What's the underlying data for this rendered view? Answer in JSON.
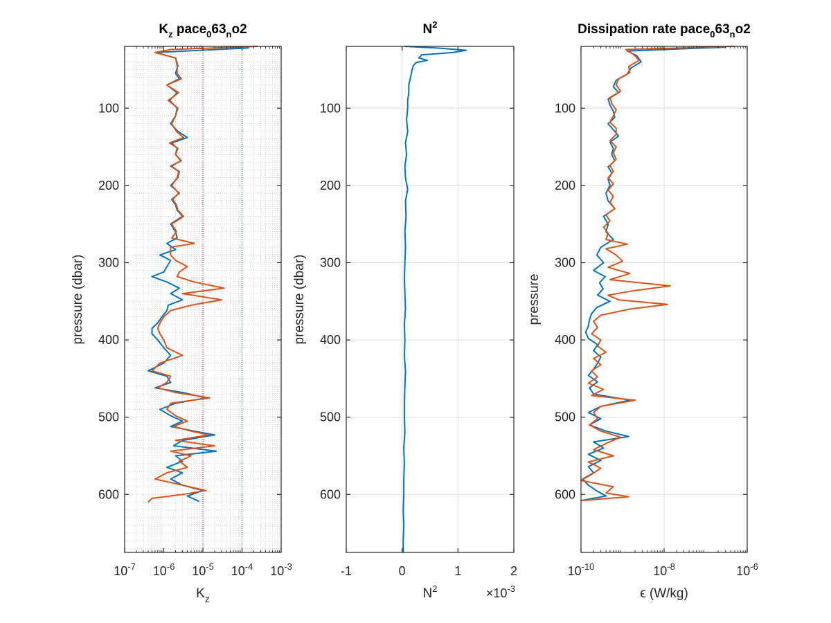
{
  "colors": {
    "series1": "#0072BD",
    "series2": "#D95319",
    "refline": "#C00000",
    "grid": "#DDDDDD",
    "axis": "#262626"
  },
  "chart_data": [
    {
      "type": "line",
      "title_main": "K",
      "title_sub": "z",
      "title_tail": " pace",
      "title_sub2": "0",
      "title_mid": "63",
      "title_sub3": "n",
      "title_end": "o2",
      "xlabel_main": "K",
      "xlabel_sub": "z",
      "ylabel": "pressure (dbar)",
      "xscale": "log",
      "xlim": [
        1e-07,
        0.001
      ],
      "ylim": [
        20,
        675
      ],
      "y_reversed": true,
      "xticks": [
        1e-07,
        1e-06,
        1e-05,
        0.0001,
        0.001
      ],
      "xtick_base": "10",
      "xtick_exponents": [
        "-7",
        "-6",
        "-5",
        "-4",
        "-3"
      ],
      "yticks": [
        100,
        200,
        300,
        400,
        500,
        600
      ],
      "ytick_labels": [
        "100",
        "200",
        "300",
        "400",
        "500",
        "600"
      ],
      "grid": "log-minor dotted",
      "reference_lines": [
        1e-05,
        0.0001
      ],
      "series": [
        {
          "color": "#0072BD",
          "y": [
            22,
            28,
            35,
            45,
            55,
            62,
            70,
            80,
            90,
            100,
            110,
            120,
            130,
            138,
            145,
            152,
            160,
            168,
            175,
            182,
            190,
            200,
            210,
            218,
            225,
            232,
            240,
            250,
            260,
            268,
            275,
            283,
            290,
            297,
            305,
            312,
            318,
            325,
            333,
            340,
            348,
            355,
            362,
            370,
            378,
            385,
            392,
            400,
            410,
            420,
            430,
            440,
            447,
            455,
            462,
            468,
            475,
            482,
            490,
            498,
            505,
            512,
            518,
            523,
            530,
            537,
            544,
            550,
            557,
            565,
            572,
            580,
            588,
            595,
            602,
            609
          ],
          "x": [
            0.00015,
            6e-07,
            2e-06,
            2.3e-06,
            2e-06,
            2.5e-06,
            1.2e-06,
            2.2e-06,
            1.4e-06,
            2.2e-06,
            2e-06,
            1.5e-06,
            2.3e-06,
            4e-06,
            1.6e-06,
            2.2e-06,
            2e-06,
            2.8e-06,
            1.5e-06,
            2.5e-06,
            2.3e-06,
            1.5e-06,
            2.5e-06,
            1.6e-06,
            2e-06,
            2.2e-06,
            3e-06,
            1.5e-06,
            2e-06,
            2.2e-06,
            1.2e-06,
            2e-06,
            8e-07,
            1.5e-06,
            1.2e-06,
            1e-06,
            5e-07,
            1.2e-06,
            2.5e-06,
            1.5e-06,
            3e-06,
            1.3e-06,
            1.2e-06,
            9e-07,
            7e-07,
            5e-07,
            5e-07,
            7e-07,
            1e-06,
            1.5e-06,
            1e-06,
            4e-07,
            1.2e-06,
            1.5e-06,
            6e-07,
            3e-06,
            1.2e-05,
            2e-06,
            8e-07,
            1.5e-06,
            3e-06,
            1.5e-06,
            6e-06,
            2e-05,
            3e-06,
            1.8e-06,
            2.2e-05,
            2e-06,
            3e-06,
            1.2e-06,
            3e-06,
            1.5e-06,
            3e-06,
            1e-05,
            4e-06,
            8e-06
          ]
        },
        {
          "color": "#D95319",
          "y": [
            20,
            24,
            28,
            35,
            45,
            55,
            62,
            70,
            80,
            90,
            100,
            110,
            120,
            130,
            138,
            145,
            152,
            160,
            168,
            175,
            182,
            190,
            200,
            210,
            218,
            225,
            232,
            240,
            250,
            260,
            268,
            275,
            280,
            290,
            297,
            305,
            312,
            318,
            325,
            333,
            340,
            348,
            355,
            362,
            370,
            378,
            385,
            392,
            400,
            410,
            420,
            430,
            440,
            447,
            455,
            462,
            468,
            475,
            482,
            490,
            498,
            505,
            512,
            518,
            523,
            530,
            537,
            544,
            550,
            557,
            565,
            572,
            580,
            588,
            595,
            600,
            605,
            610
          ],
          "x": [
            0.00025,
            1.5e-06,
            6e-07,
            2e-06,
            2.2e-06,
            2.2e-06,
            2.8e-06,
            1.2e-06,
            2.4e-06,
            1.3e-06,
            2.3e-06,
            2e-06,
            1.6e-06,
            2.1e-06,
            3.2e-06,
            1.4e-06,
            2.3e-06,
            2e-06,
            2.7e-06,
            1.6e-06,
            2.4e-06,
            2.2e-06,
            1.6e-06,
            2.4e-06,
            1.7e-06,
            2.1e-06,
            2.3e-06,
            3.2e-06,
            1.6e-06,
            2.1e-06,
            1.6e-06,
            6e-06,
            1.5e-06,
            1.5e-06,
            2e-06,
            4e-06,
            2.5e-06,
            2.2e-06,
            6e-06,
            3.5e-05,
            3e-06,
            3e-05,
            5e-06,
            1.5e-06,
            1e-06,
            8e-07,
            7e-07,
            8e-07,
            1e-06,
            1.2e-06,
            3e-06,
            8e-07,
            5e-07,
            1.5e-06,
            1.2e-06,
            7e-07,
            2e-06,
            1.5e-05,
            1.5e-06,
            1.2e-06,
            2e-06,
            4e-06,
            1.8e-06,
            5e-06,
            1.4e-05,
            2e-06,
            2e-05,
            1.5e-06,
            5e-06,
            2.5e-06,
            4e-06,
            1.2e-06,
            6e-07,
            3e-06,
            1.2e-05,
            3e-06,
            5e-07,
            4e-07
          ]
        }
      ]
    },
    {
      "type": "line",
      "title_main": "N",
      "title_sup": "2",
      "xlabel_main": "N",
      "xlabel_sup": "2",
      "xlabel_multiplier": "×10",
      "xlabel_multiplier_exp": "-3",
      "ylabel": "pressure (dbar)",
      "xscale": "linear",
      "xlim": [
        -1,
        2
      ],
      "ylim": [
        20,
        675
      ],
      "y_reversed": true,
      "xticks": [
        -1,
        0,
        1,
        2
      ],
      "xtick_labels": [
        "-1",
        "0",
        "1",
        "2"
      ],
      "yticks": [
        100,
        200,
        300,
        400,
        500,
        600
      ],
      "ytick_labels": [
        "100",
        "200",
        "300",
        "400",
        "500",
        "600"
      ],
      "grid": "on",
      "series": [
        {
          "color": "#0072BD",
          "y": [
            20,
            22,
            25,
            28,
            31,
            35,
            38,
            41,
            45,
            50,
            60,
            70,
            80,
            90,
            100,
            115,
            130,
            145,
            160,
            175,
            190,
            205,
            220,
            240,
            260,
            280,
            300,
            320,
            340,
            360,
            380,
            400,
            420,
            440,
            460,
            480,
            500,
            520,
            540,
            560,
            580,
            600,
            620,
            640,
            660,
            675
          ],
          "x": [
            0.05,
            0.6,
            1.15,
            0.9,
            0.35,
            0.3,
            0.45,
            0.25,
            0.2,
            0.18,
            0.15,
            0.12,
            0.12,
            0.1,
            0.1,
            0.08,
            0.1,
            0.06,
            0.08,
            0.05,
            0.06,
            0.1,
            0.06,
            0.07,
            0.05,
            0.06,
            0.05,
            0.04,
            0.05,
            0.06,
            0.04,
            0.05,
            0.04,
            0.06,
            0.05,
            0.04,
            0.04,
            0.05,
            0.03,
            0.04,
            0.03,
            0.03,
            0.02,
            0.03,
            0.02,
            0.02
          ]
        }
      ]
    },
    {
      "type": "line",
      "title_main": "Dissipation rate pace",
      "title_sub2": "0",
      "title_mid": "63",
      "title_sub3": "n",
      "title_end": "o2",
      "xlabel": "ϵ (W/kg)",
      "ylabel": "pressure",
      "xscale": "log",
      "xlim": [
        1e-10,
        1e-06
      ],
      "ylim": [
        20,
        675
      ],
      "y_reversed": true,
      "xticks": [
        1e-10,
        1e-08,
        1e-06
      ],
      "xtick_base": "10",
      "xtick_exponents": [
        "-10",
        "-8",
        "-6"
      ],
      "yticks": [
        100,
        200,
        300,
        400,
        500,
        600
      ],
      "ytick_labels": [
        "100",
        "200",
        "300",
        "400",
        "500",
        "600"
      ],
      "grid": "on",
      "series": [
        {
          "color": "#0072BD",
          "y": [
            21,
            26,
            32,
            40,
            48,
            56,
            64,
            72,
            80,
            88,
            96,
            104,
            112,
            120,
            128,
            136,
            144,
            152,
            160,
            168,
            176,
            184,
            192,
            200,
            210,
            220,
            230,
            240,
            250,
            260,
            270,
            280,
            290,
            300,
            310,
            318,
            326,
            334,
            342,
            350,
            358,
            366,
            374,
            382,
            390,
            398,
            406,
            414,
            422,
            430,
            438,
            446,
            454,
            462,
            470,
            478,
            486,
            494,
            502,
            510,
            518,
            525,
            532,
            540,
            548,
            556,
            564,
            572,
            580,
            588,
            596,
            602,
            608
          ],
          "x": [
            3e-07,
            1.3e-09,
            2.2e-09,
            2.8e-09,
            1.6e-09,
            1.3e-09,
            7e-10,
            6e-10,
            8e-10,
            4.5e-10,
            5e-10,
            6e-10,
            6.5e-10,
            4.5e-10,
            6e-10,
            8e-10,
            5e-10,
            6e-10,
            5.5e-10,
            6.5e-10,
            4.5e-10,
            5.5e-10,
            4.5e-10,
            5e-10,
            4e-10,
            4.5e-10,
            6.5e-10,
            3.5e-10,
            4.5e-10,
            4e-10,
            6e-10,
            3e-10,
            2.4e-10,
            3.5e-10,
            2e-10,
            3.8e-10,
            2.8e-10,
            3.4e-10,
            2.5e-10,
            5e-10,
            2.4e-10,
            1.8e-10,
            1.6e-10,
            1.5e-10,
            1.3e-10,
            1.5e-10,
            2.5e-10,
            2e-10,
            3e-10,
            2.5e-10,
            2e-10,
            1.5e-10,
            2.5e-10,
            1.6e-10,
            2e-10,
            1.5e-09,
            3e-10,
            1.5e-10,
            3e-10,
            1.6e-10,
            4e-10,
            1.4e-09,
            2e-10,
            3.5e-10,
            1.5e-10,
            3e-10,
            1.5e-10,
            2e-10,
            1.1e-10,
            1.5e-10,
            2.5e-10,
            4e-10,
            1e-10
          ]
        },
        {
          "color": "#D95319",
          "y": [
            20,
            24,
            30,
            38,
            46,
            54,
            62,
            70,
            78,
            86,
            94,
            102,
            110,
            118,
            126,
            134,
            142,
            150,
            158,
            166,
            174,
            182,
            190,
            198,
            206,
            214,
            222,
            230,
            238,
            246,
            254,
            262,
            270,
            276,
            282,
            290,
            298,
            306,
            314,
            322,
            330,
            336,
            342,
            348,
            354,
            360,
            368,
            376,
            384,
            392,
            400,
            408,
            416,
            424,
            432,
            440,
            448,
            456,
            464,
            472,
            478,
            486,
            494,
            502,
            510,
            518,
            526,
            534,
            542,
            550,
            558,
            566,
            574,
            582,
            590,
            598,
            603,
            608
          ],
          "x": [
            5e-07,
            1.2e-09,
            1.8e-09,
            2.5e-09,
            1.4e-09,
            1.5e-09,
            8e-10,
            7e-10,
            9e-10,
            5e-10,
            5.5e-10,
            7e-10,
            6e-10,
            5e-10,
            7e-10,
            7e-10,
            5e-10,
            7e-10,
            6e-10,
            7e-10,
            5e-10,
            6e-10,
            4.5e-10,
            6e-10,
            4.5e-10,
            6e-10,
            5e-10,
            6.5e-10,
            4e-10,
            5e-10,
            3.5e-10,
            4.5e-10,
            4e-10,
            1.3e-09,
            4e-10,
            7e-10,
            1e-09,
            4.5e-10,
            1.5e-09,
            5e-10,
            1.4e-08,
            2e-09,
            4.5e-10,
            8e-10,
            1.2e-08,
            1.5e-09,
            3e-10,
            2e-10,
            2.5e-10,
            1.8e-10,
            3e-10,
            2.5e-10,
            4e-10,
            2e-10,
            3e-10,
            1.8e-10,
            2.5e-10,
            1.5e-10,
            3.5e-10,
            1.8e-10,
            2e-09,
            3e-10,
            2e-10,
            2.5e-10,
            1.6e-10,
            3e-10,
            9e-10,
            4e-10,
            2e-10,
            6e-10,
            1.5e-10,
            3e-10,
            1.8e-10,
            1e-10,
            6e-10,
            4e-10,
            1.4e-09,
            1e-10
          ]
        }
      ]
    }
  ]
}
